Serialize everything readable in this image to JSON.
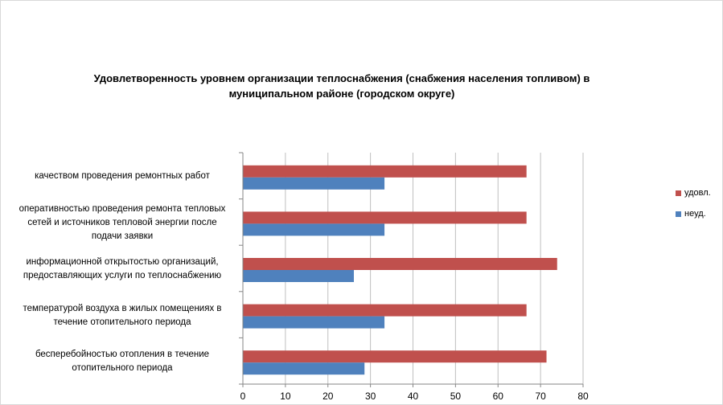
{
  "chart_data": {
    "type": "bar",
    "orientation": "horizontal",
    "title_lines": [
      "Удовлетворенность уровнем организации теплоснабжения (снабжения населения топливом) в",
      "муниципальном районе (городском округе)"
    ],
    "categories": [
      {
        "lines": [
          "качеством проведения  ремонтных работ"
        ]
      },
      {
        "lines": [
          "оперативностью  проведения  ремонта тепловых",
          "сетей и источников тепловой энергии после",
          "подачи заявки"
        ]
      },
      {
        "lines": [
          "информационной  открытостью организаций,",
          "предоставляющих услуги по теплоснабжению"
        ]
      },
      {
        "lines": [
          "температурой воздуха в жилых помещениях  в",
          "течение  отопительного периода"
        ]
      },
      {
        "lines": [
          "бесперебойностью  отопления  в течение",
          "отопительного периода"
        ]
      }
    ],
    "series": [
      {
        "name": "удовл.",
        "color": "#c0504d",
        "values": [
          66.7,
          66.7,
          73.9,
          66.7,
          71.4
        ]
      },
      {
        "name": "неуд.",
        "color": "#4f81bd",
        "values": [
          33.3,
          33.3,
          26.1,
          33.3,
          28.6
        ]
      }
    ],
    "xlim": [
      0,
      80
    ],
    "xticks": [
      "0",
      "10",
      "20",
      "30",
      "40",
      "50",
      "60",
      "70",
      "80"
    ],
    "grid": "vertical",
    "legend": "right"
  }
}
